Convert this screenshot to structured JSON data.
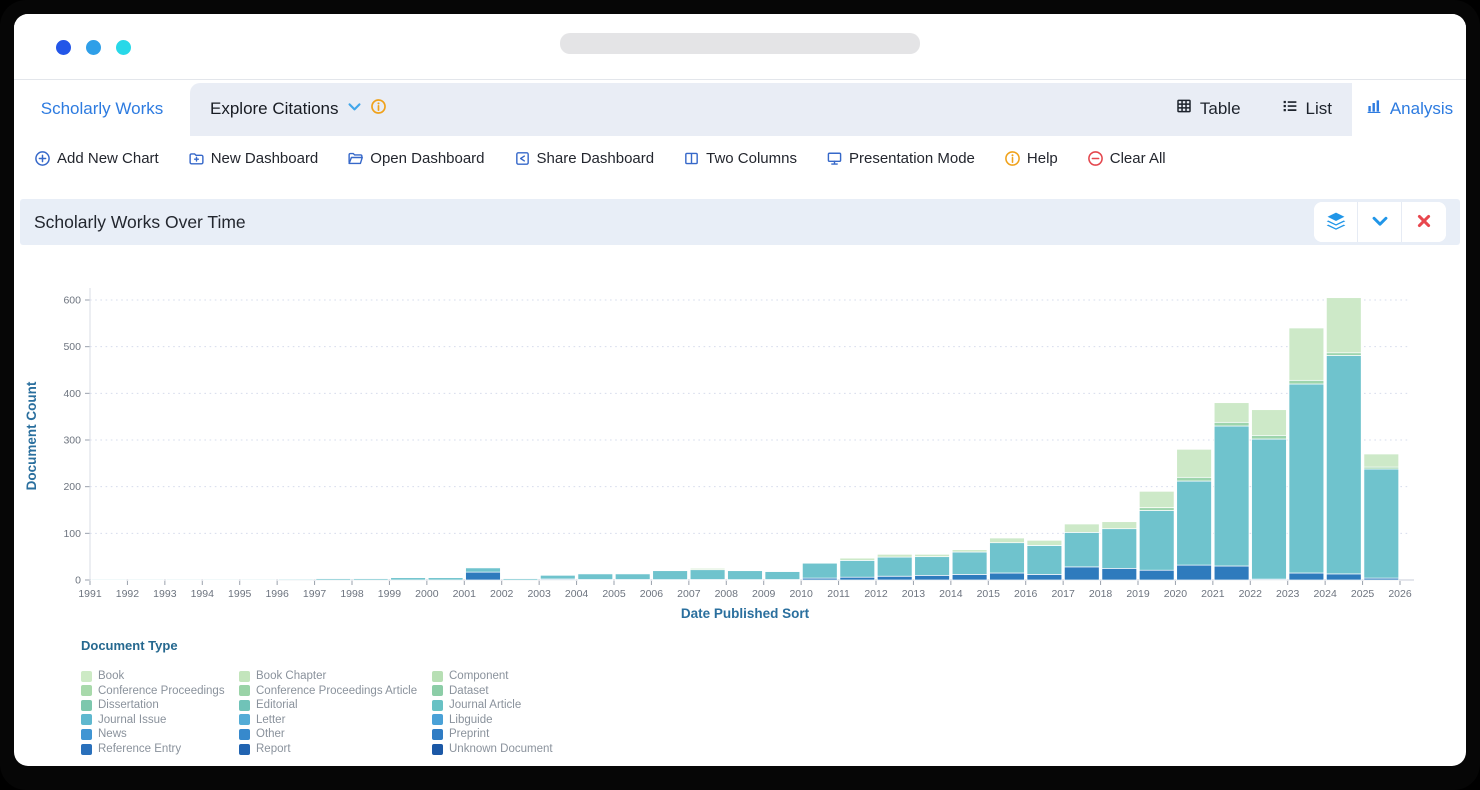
{
  "tab_bar": {
    "scholarly_works": "Scholarly Works",
    "explore_citations": "Explore Citations",
    "view_switcher": {
      "table": "Table",
      "list": "List",
      "analysis": "Analysis"
    }
  },
  "toolbar": {
    "items": [
      {
        "label": "Add New Chart",
        "icon": "plus-circle-icon",
        "color": "#3668c9"
      },
      {
        "label": "New Dashboard",
        "icon": "folder-plus-icon",
        "color": "#3668c9"
      },
      {
        "label": "Open Dashboard",
        "icon": "folder-open-icon",
        "color": "#3668c9"
      },
      {
        "label": "Share Dashboard",
        "icon": "share-square-icon",
        "color": "#3668c9"
      },
      {
        "label": "Two Columns",
        "icon": "two-columns-icon",
        "color": "#3668c9"
      },
      {
        "label": "Presentation Mode",
        "icon": "monitor-icon",
        "color": "#3668c9"
      },
      {
        "label": "Help",
        "icon": "info-circle-icon",
        "color": "#f0a21c"
      },
      {
        "label": "Clear All",
        "icon": "minus-circle-icon",
        "color": "#e4474e"
      }
    ]
  },
  "panel": {
    "title": "Scholarly Works Over Time",
    "buttons": [
      "layers-icon",
      "chevron-down-icon",
      "close-icon"
    ]
  },
  "chart_data": {
    "type": "bar",
    "stacked": true,
    "title": "Scholarly Works Over Time",
    "xlabel": "Date Published Sort",
    "ylabel": "Document Count",
    "ylim": [
      0,
      650
    ],
    "yticks": [
      0,
      100,
      200,
      300,
      400,
      500,
      600
    ],
    "grid": "dotted horizontal",
    "x_tick_labels": [
      "1991",
      "1992",
      "1993",
      "1994",
      "1995",
      "1996",
      "1997",
      "1998",
      "1999",
      "2000",
      "2001",
      "2002",
      "2003",
      "2004",
      "2005",
      "2006",
      "2007",
      "2008",
      "2009",
      "2010",
      "2011",
      "2012",
      "2013",
      "2014",
      "2015",
      "2016",
      "2017",
      "2018",
      "2019",
      "2020",
      "2021",
      "2022",
      "2023",
      "2024",
      "2025",
      "2026"
    ],
    "categories": [
      1991,
      1992,
      1993,
      1994,
      1995,
      1996,
      1997,
      1998,
      1999,
      2000,
      2001,
      2002,
      2003,
      2004,
      2005,
      2006,
      2007,
      2008,
      2009,
      2010,
      2011,
      2012,
      2013,
      2014,
      2015,
      2016,
      2017,
      2018,
      2019,
      2020,
      2021,
      2022,
      2023,
      2024,
      2025
    ],
    "series": [
      {
        "name": "News / Other / Preprint / Reference Entry / Report / Unknown Document (blue band)",
        "color": "#2e7bbd",
        "values": [
          0,
          0,
          0,
          0,
          0,
          0,
          0,
          0,
          0,
          0,
          17,
          0,
          2,
          1,
          1,
          1,
          1,
          1,
          1,
          4,
          6,
          8,
          10,
          12,
          15,
          12,
          28,
          25,
          21,
          32,
          30,
          2,
          15,
          13,
          4
        ]
      },
      {
        "name": "Journal Article / Journal Issue / Letter / Libguide (teal band)",
        "color": "#6fc3cd",
        "values": [
          1,
          1,
          1,
          1,
          1,
          2,
          3,
          3,
          5,
          5,
          9,
          3,
          8,
          12,
          12,
          19,
          21,
          19,
          17,
          32,
          36,
          41,
          40,
          48,
          65,
          62,
          74,
          85,
          128,
          180,
          300,
          300,
          405,
          468,
          234
        ]
      },
      {
        "name": "Dataset / Dissertation / Editorial (mid-green band)",
        "color": "#9dd5ad",
        "values": [
          0,
          0,
          0,
          0,
          0,
          0,
          0,
          0,
          0,
          0,
          0,
          0,
          0,
          0,
          0,
          0,
          0,
          0,
          0,
          0,
          0,
          0,
          0,
          0,
          0,
          0,
          0,
          0,
          6,
          8,
          8,
          8,
          8,
          6,
          4
        ]
      },
      {
        "name": "Book / Book Chapter / Component / Conference Proceedings (light-green band)",
        "color": "#cde9c8",
        "values": [
          0,
          0,
          0,
          0,
          0,
          0,
          0,
          0,
          0,
          0,
          0,
          0,
          0,
          0,
          0,
          0,
          3,
          0,
          0,
          0,
          5,
          6,
          5,
          5,
          10,
          11,
          18,
          15,
          35,
          60,
          42,
          55,
          112,
          118,
          28
        ]
      }
    ],
    "totals_by_year": [
      1,
      1,
      1,
      1,
      1,
      2,
      3,
      3,
      5,
      5,
      26,
      3,
      10,
      13,
      13,
      20,
      25,
      20,
      18,
      36,
      47,
      55,
      55,
      65,
      90,
      85,
      120,
      125,
      190,
      280,
      380,
      365,
      540,
      605,
      270
    ]
  },
  "legend": {
    "title": "Document Type",
    "items": [
      {
        "label": "Book",
        "color": "#cdeac5"
      },
      {
        "label": "Book Chapter",
        "color": "#c3e5bc"
      },
      {
        "label": "Component",
        "color": "#b7dfb4"
      },
      {
        "label": "Conference Proceedings",
        "color": "#a8d9ab"
      },
      {
        "label": "Conference Proceedings Article",
        "color": "#9ad3a7"
      },
      {
        "label": "Dataset",
        "color": "#8ccda7"
      },
      {
        "label": "Dissertation",
        "color": "#7dc7ad"
      },
      {
        "label": "Editorial",
        "color": "#70c3b8"
      },
      {
        "label": "Journal Article",
        "color": "#68c1c4"
      },
      {
        "label": "Journal Issue",
        "color": "#5fb8cf"
      },
      {
        "label": "Letter",
        "color": "#54acd6"
      },
      {
        "label": "Libguide",
        "color": "#4aa1d7"
      },
      {
        "label": "News",
        "color": "#4095d3"
      },
      {
        "label": "Other",
        "color": "#3789cc"
      },
      {
        "label": "Preprint",
        "color": "#2f7cc4"
      },
      {
        "label": "Reference Entry",
        "color": "#2a70bb"
      },
      {
        "label": "Report",
        "color": "#2264b1"
      },
      {
        "label": "Unknown Document",
        "color": "#1b58a6"
      }
    ]
  },
  "colors": {
    "active_tab_blue": "#2d7be0",
    "tab_strip_gray": "#e9edf5",
    "panel_header_bg": "#e8eef7",
    "axis_label_blue": "#2a6f9e",
    "help_orange": "#f0a21c",
    "danger_red": "#e4474e"
  }
}
